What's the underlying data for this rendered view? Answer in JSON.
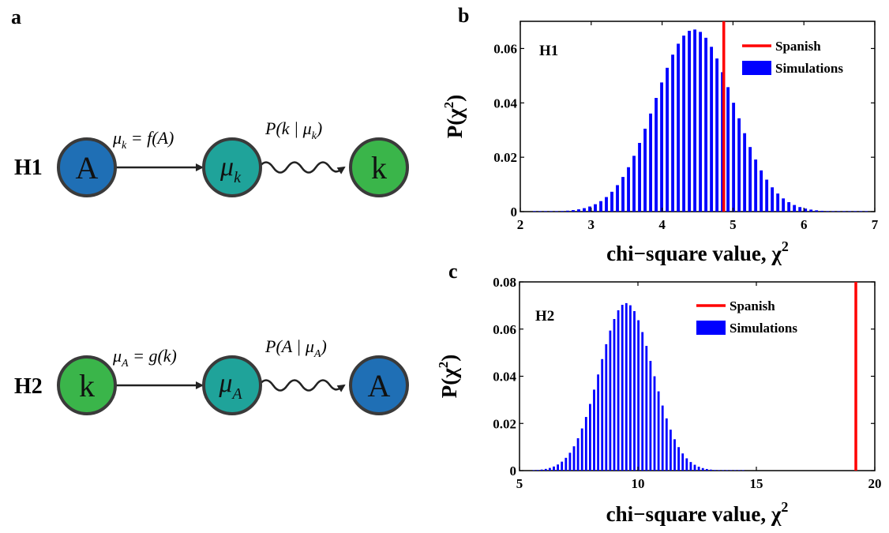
{
  "panels": {
    "a": "a",
    "b": "b",
    "c": "c"
  },
  "diagram": {
    "h1": {
      "label": "H1",
      "node_left": "A",
      "node_mid": "μ",
      "node_mid_sub": "k",
      "node_right": "k",
      "edge1": {
        "lhs": "μ",
        "lhs_sub": "k",
        "rhs": " = f(A)"
      },
      "edge2": {
        "pre": "P(k | μ",
        "sub": "k",
        "post": ")"
      }
    },
    "h2": {
      "label": "H2",
      "node_left": "k",
      "node_mid": "μ",
      "node_mid_sub": "A",
      "node_right": "A",
      "edge1": {
        "lhs": "μ",
        "lhs_sub": "A",
        "rhs": " = g(k)"
      },
      "edge2": {
        "pre": "P(A | μ",
        "sub": "A",
        "post": ")"
      }
    },
    "colors": {
      "node_a": "#1f6fb5",
      "node_mu": "#1fa39a",
      "node_k": "#3ab54a",
      "outline": "#3a3a3a"
    }
  },
  "chart_data": [
    {
      "type": "bar",
      "panel": "b",
      "inner_title": "H1",
      "xlabel": "chi−square value, χ",
      "xlabel_sup": "2",
      "ylabel": "P(χ",
      "ylabel_sup": "2",
      "ylabel_post": ")",
      "xlim": [
        2,
        7
      ],
      "ylim": [
        0,
        0.07
      ],
      "xticks": [
        "2",
        "3",
        "4",
        "5",
        "6",
        "7"
      ],
      "yticks": [
        "0",
        "0.02",
        "0.04",
        "0.06"
      ],
      "series": [
        {
          "name": "Simulations",
          "color": "#0000ff",
          "distribution": {
            "mean": 4.45,
            "sd": 0.55,
            "peak": 0.067,
            "x_start": 2.2,
            "x_end": 6.9,
            "bin": 0.078
          }
        }
      ],
      "vline": {
        "name": "Spanish",
        "x": 4.87,
        "color": "#ff0000"
      },
      "legend": [
        "Spanish",
        "Simulations"
      ]
    },
    {
      "type": "bar",
      "panel": "c",
      "inner_title": "H2",
      "xlabel": "chi−square value, χ",
      "xlabel_sup": "2",
      "ylabel": "P(χ",
      "ylabel_sup": "2",
      "ylabel_post": ")",
      "xlim": [
        5,
        20
      ],
      "ylim": [
        0,
        0.08
      ],
      "xticks": [
        "5",
        "10",
        "15",
        "20"
      ],
      "yticks": [
        "0",
        "0.02",
        "0.04",
        "0.06",
        "0.08"
      ],
      "series": [
        {
          "name": "Simulations",
          "color": "#0000ff",
          "distribution": {
            "mean": 9.5,
            "sd": 1.12,
            "peak": 0.071,
            "x_start": 5.6,
            "x_end": 14.5,
            "bin": 0.17
          }
        }
      ],
      "vline": {
        "name": "Spanish",
        "x": 19.2,
        "color": "#ff0000"
      },
      "legend": [
        "Spanish",
        "Simulations"
      ]
    }
  ]
}
